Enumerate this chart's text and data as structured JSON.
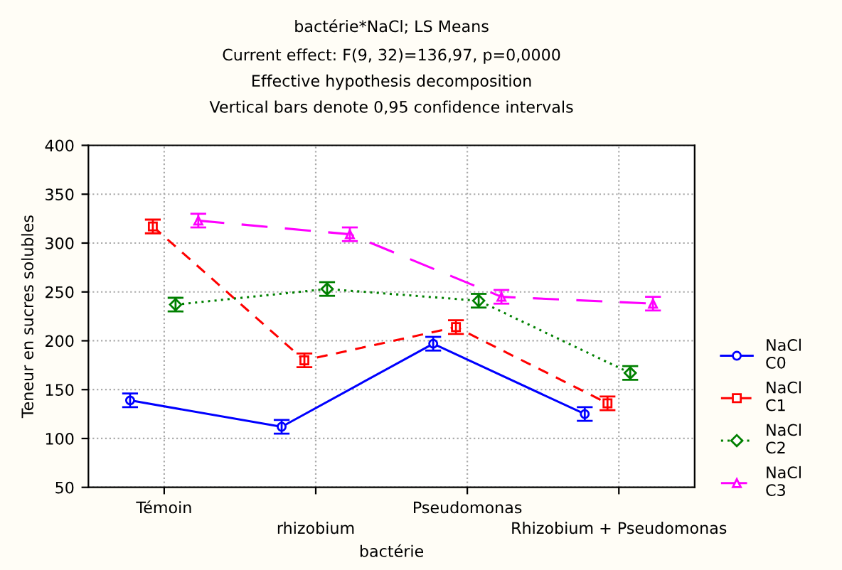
{
  "chart_data": {
    "type": "line",
    "title": "bactérie*NaCl; LS Means",
    "subtitle": "Current effect: F(9, 32)=136,97, p=0,0000\nEffective hypothesis decomposition\nVertical bars denote 0,95 confidence intervals",
    "xlabel": "bactérie",
    "ylabel": "Teneur en sucres solubles",
    "categories": [
      "Témoin",
      "rhizobium",
      "Pseudomonas",
      "Rhizobium + Pseudomonas"
    ],
    "series": [
      {
        "name": "NaCl\nC0",
        "color": "#0000ff",
        "marker": "circle",
        "line_style": "solid",
        "values": [
          139,
          112,
          197,
          125
        ],
        "errors": [
          7,
          7,
          7,
          7
        ]
      },
      {
        "name": "NaCl\nC1",
        "color": "#ff0000",
        "marker": "square",
        "line_style": "dashed",
        "values": [
          317,
          180,
          214,
          136
        ],
        "errors": [
          7,
          7,
          7,
          7
        ]
      },
      {
        "name": "NaCl\nC2",
        "color": "#008000",
        "marker": "diamond",
        "line_style": "dotted",
        "values": [
          237,
          253,
          241,
          167
        ],
        "errors": [
          7,
          7,
          7,
          7
        ]
      },
      {
        "name": "NaCl\nC3",
        "color": "#ff00ff",
        "marker": "triangle",
        "line_style": "longdash",
        "values": [
          323,
          309,
          245,
          238
        ],
        "errors": [
          7,
          7,
          7,
          7
        ]
      }
    ],
    "ylim": [
      50,
      400
    ],
    "yticks": [
      50,
      100,
      150,
      200,
      250,
      300,
      350,
      400
    ],
    "grid": true,
    "legend": "right"
  }
}
